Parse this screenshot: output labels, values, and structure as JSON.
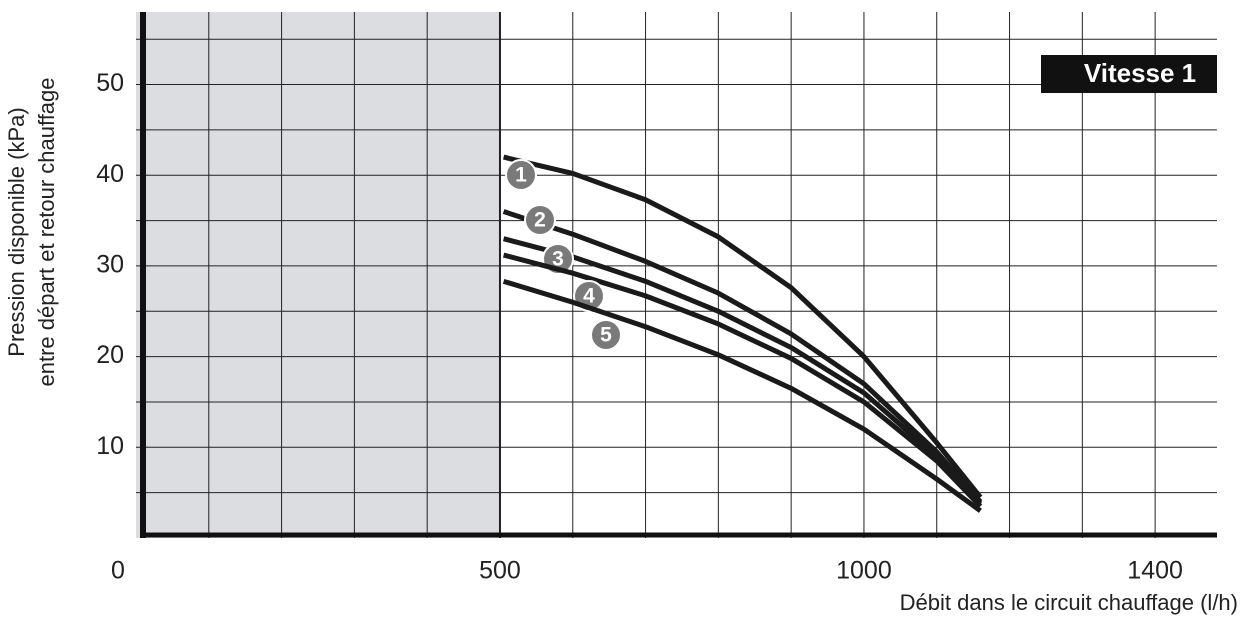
{
  "chart_data": {
    "type": "line",
    "badge": "Vitesse 1",
    "y_label": [
      "Pression disponible (kPa)",
      "entre départ et retour chauffage"
    ],
    "x_label": "Débit dans le circuit chauffage (l/h)",
    "x": [
      505,
      600,
      700,
      800,
      900,
      1000,
      1100,
      1160
    ],
    "series": [
      {
        "name": "1",
        "color": "#1a1a1a",
        "values": [
          42,
          40.2,
          37.3,
          33.2,
          27.6,
          20,
          10.5,
          4.5
        ]
      },
      {
        "name": "2",
        "color": "#1a1a1a",
        "values": [
          36,
          33.5,
          30.5,
          27,
          22.5,
          17,
          9.5,
          4
        ]
      },
      {
        "name": "3",
        "color": "#1a1a1a",
        "values": [
          33,
          31,
          28.3,
          25,
          21,
          16,
          9,
          3.8
        ]
      },
      {
        "name": "4",
        "color": "#1a1a1a",
        "values": [
          31.2,
          29.2,
          26.7,
          23.6,
          19.8,
          15,
          8.5,
          3.5
        ]
      },
      {
        "name": "5",
        "color": "#1a1a1a",
        "values": [
          28.3,
          26,
          23.3,
          20.2,
          16.5,
          12,
          6.5,
          3
        ]
      }
    ],
    "xlim": [
      0,
      1485
    ],
    "ylim": [
      0,
      58
    ],
    "xticks": [
      0,
      500,
      1000,
      1400
    ],
    "yticks": [
      10,
      20,
      30,
      40,
      50
    ],
    "xgrid": [
      100,
      200,
      300,
      400,
      500,
      600,
      700,
      800,
      900,
      1000,
      1100,
      1200,
      1300,
      1400
    ],
    "ygrid": [
      5,
      10,
      15,
      20,
      25,
      30,
      35,
      40,
      45,
      50,
      55
    ],
    "shaded_range": [
      0,
      500
    ],
    "shade_color": "#dcdde0",
    "label_color": "#7a7a7a",
    "grid": true
  }
}
